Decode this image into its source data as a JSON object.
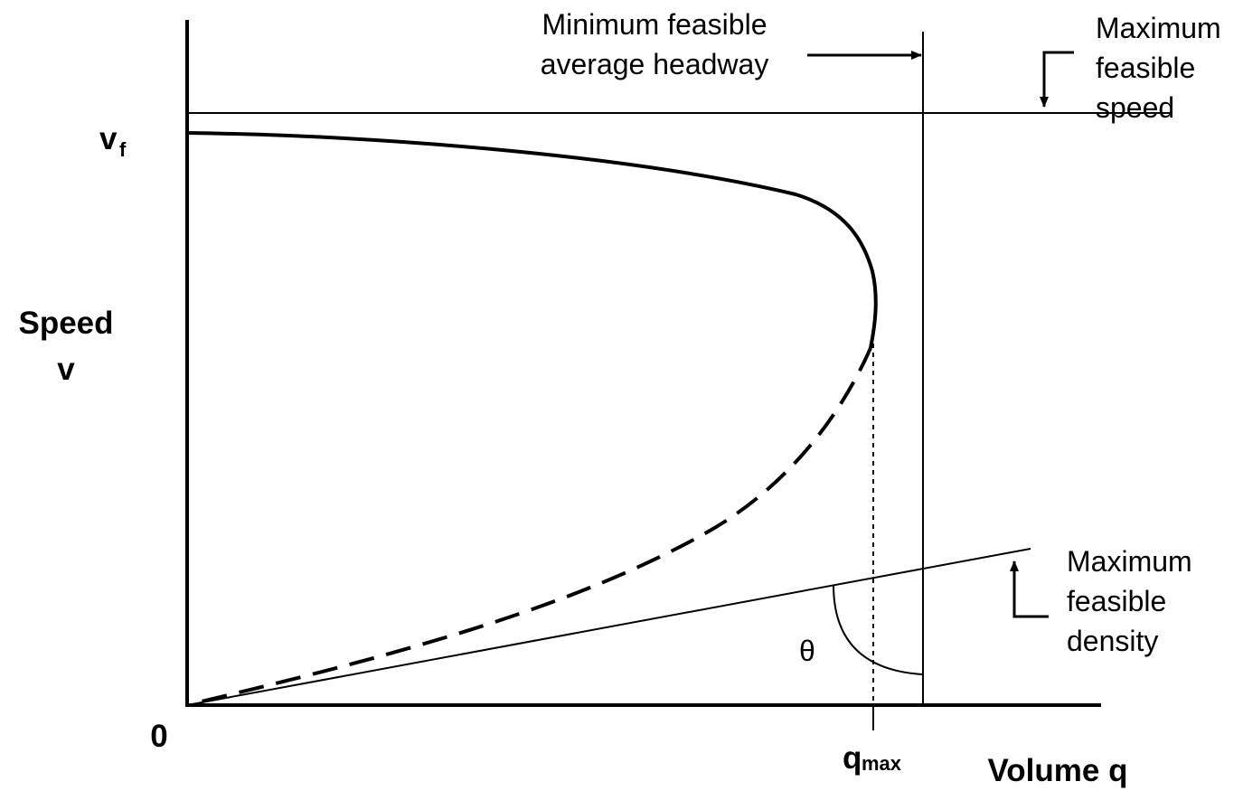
{
  "axes": {
    "y_label_line1": "Speed",
    "y_label_line2": "v",
    "x_label": "Volume q",
    "origin": "0"
  },
  "ticks": {
    "vf_main": "v",
    "vf_sub": "f",
    "qmax_main": "q",
    "qmax_sub": "max"
  },
  "annotations": {
    "min_headway_line1": "Minimum feasible",
    "min_headway_line2": "average headway",
    "max_speed_line1": "Maximum",
    "max_speed_line2": "feasible",
    "max_speed_line3": "speed",
    "max_density_line1": "Maximum",
    "max_density_line2": "feasible",
    "max_density_line3": "density",
    "angle_symbol": "θ"
  },
  "curves": {
    "uncongested_branch_style": "solid",
    "congested_branch_style": "dashed"
  },
  "colors": {
    "ink": "#000000",
    "background": "#ffffff"
  }
}
